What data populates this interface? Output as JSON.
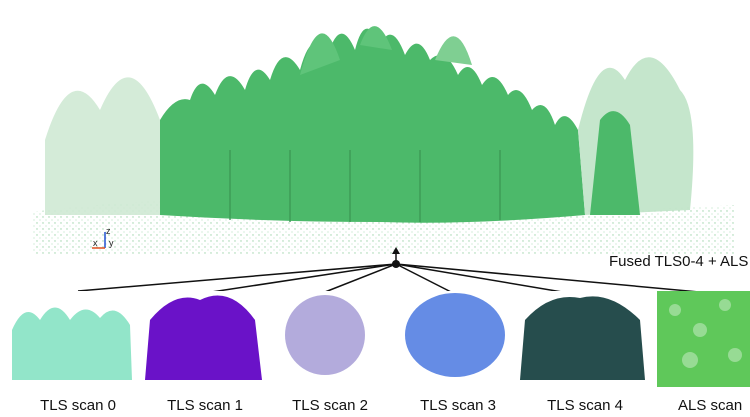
{
  "fused_label": "Fused TLS0-4 + ALS",
  "axis_labels": {
    "x": "x",
    "y": "y",
    "z": "z"
  },
  "colors": {
    "fused": "#4cb96a",
    "tls0": "#7fe0c0",
    "tls1": "#6a12c8",
    "tls2": "#9a8fd0",
    "tls3": "#4a78e0",
    "tls4": "#0e3a3a",
    "als": "#5fc85a",
    "connector": "#111111"
  },
  "scans": [
    {
      "id": "tls0",
      "label": "TLS scan 0",
      "icon": "side-view-tree-cloud"
    },
    {
      "id": "tls1",
      "label": "TLS scan 1",
      "icon": "top-view-tree-cloud"
    },
    {
      "id": "tls2",
      "label": "TLS scan 2",
      "icon": "top-view-tree-cloud"
    },
    {
      "id": "tls3",
      "label": "TLS scan 3",
      "icon": "top-view-tree-cloud"
    },
    {
      "id": "tls4",
      "label": "TLS scan 4",
      "icon": "top-view-tree-cloud"
    },
    {
      "id": "als",
      "label": "ALS scan",
      "icon": "canopy-top-view"
    }
  ]
}
